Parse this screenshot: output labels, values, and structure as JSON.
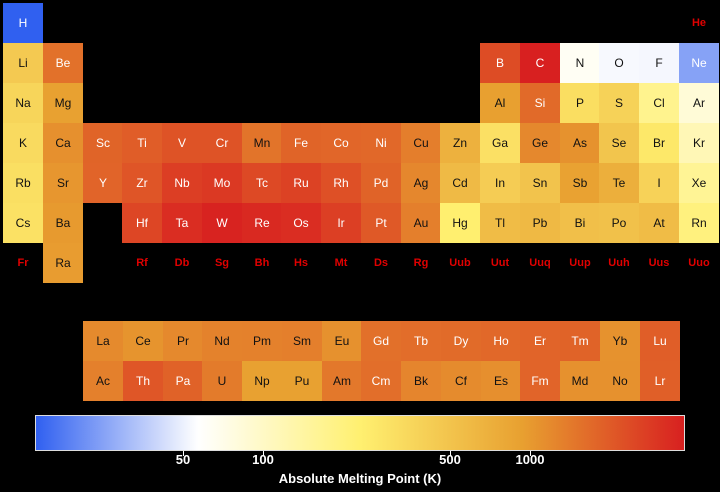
{
  "chart_data": {
    "type": "heatmap",
    "colorbar": {
      "label": "Absolute Melting Point (K)",
      "scale": "log",
      "range": [
        14,
        3800
      ],
      "ticks": [
        50,
        100,
        500,
        1000
      ],
      "colors": [
        "#3060f0",
        "#ffffff",
        "#fff070",
        "#e8a030",
        "#d82020"
      ]
    },
    "main_table": [
      {
        "symbol": "H",
        "row": 1,
        "col": 1,
        "value": 14
      },
      {
        "symbol": "He",
        "row": 1,
        "col": 18,
        "value": null
      },
      {
        "symbol": "Li",
        "row": 2,
        "col": 1,
        "value": 454
      },
      {
        "symbol": "Be",
        "row": 2,
        "col": 2,
        "value": 1560
      },
      {
        "symbol": "B",
        "row": 2,
        "col": 13,
        "value": 2349
      },
      {
        "symbol": "C",
        "row": 2,
        "col": 14,
        "value": 3800
      },
      {
        "symbol": "N",
        "row": 2,
        "col": 15,
        "value": 63
      },
      {
        "symbol": "O",
        "row": 2,
        "col": 16,
        "value": 54
      },
      {
        "symbol": "F",
        "row": 2,
        "col": 17,
        "value": 53
      },
      {
        "symbol": "Ne",
        "row": 2,
        "col": 18,
        "value": 25
      },
      {
        "symbol": "Na",
        "row": 3,
        "col": 1,
        "value": 371
      },
      {
        "symbol": "Mg",
        "row": 3,
        "col": 2,
        "value": 923
      },
      {
        "symbol": "Al",
        "row": 3,
        "col": 13,
        "value": 933
      },
      {
        "symbol": "Si",
        "row": 3,
        "col": 14,
        "value": 1687
      },
      {
        "symbol": "P",
        "row": 3,
        "col": 15,
        "value": 317
      },
      {
        "symbol": "S",
        "row": 3,
        "col": 16,
        "value": 388
      },
      {
        "symbol": "Cl",
        "row": 3,
        "col": 17,
        "value": 172
      },
      {
        "symbol": "Ar",
        "row": 3,
        "col": 18,
        "value": 84
      },
      {
        "symbol": "K",
        "row": 4,
        "col": 1,
        "value": 337
      },
      {
        "symbol": "Ca",
        "row": 4,
        "col": 2,
        "value": 1115
      },
      {
        "symbol": "Sc",
        "row": 4,
        "col": 3,
        "value": 1814
      },
      {
        "symbol": "Ti",
        "row": 4,
        "col": 4,
        "value": 1941
      },
      {
        "symbol": "V",
        "row": 4,
        "col": 5,
        "value": 2183
      },
      {
        "symbol": "Cr",
        "row": 4,
        "col": 6,
        "value": 2180
      },
      {
        "symbol": "Mn",
        "row": 4,
        "col": 7,
        "value": 1519
      },
      {
        "symbol": "Fe",
        "row": 4,
        "col": 8,
        "value": 1811
      },
      {
        "symbol": "Co",
        "row": 4,
        "col": 9,
        "value": 1768
      },
      {
        "symbol": "Ni",
        "row": 4,
        "col": 10,
        "value": 1728
      },
      {
        "symbol": "Cu",
        "row": 4,
        "col": 11,
        "value": 1358
      },
      {
        "symbol": "Zn",
        "row": 4,
        "col": 12,
        "value": 693
      },
      {
        "symbol": "Ga",
        "row": 4,
        "col": 13,
        "value": 303
      },
      {
        "symbol": "Ge",
        "row": 4,
        "col": 14,
        "value": 1211
      },
      {
        "symbol": "As",
        "row": 4,
        "col": 15,
        "value": 1090
      },
      {
        "symbol": "Se",
        "row": 4,
        "col": 16,
        "value": 494
      },
      {
        "symbol": "Br",
        "row": 4,
        "col": 17,
        "value": 266
      },
      {
        "symbol": "Kr",
        "row": 4,
        "col": 18,
        "value": 116
      },
      {
        "symbol": "Rb",
        "row": 5,
        "col": 1,
        "value": 312
      },
      {
        "symbol": "Sr",
        "row": 5,
        "col": 2,
        "value": 1050
      },
      {
        "symbol": "Y",
        "row": 5,
        "col": 3,
        "value": 1799
      },
      {
        "symbol": "Zr",
        "row": 5,
        "col": 4,
        "value": 2128
      },
      {
        "symbol": "Nb",
        "row": 5,
        "col": 5,
        "value": 2750
      },
      {
        "symbol": "Mo",
        "row": 5,
        "col": 6,
        "value": 2896
      },
      {
        "symbol": "Tc",
        "row": 5,
        "col": 7,
        "value": 2430
      },
      {
        "symbol": "Ru",
        "row": 5,
        "col": 8,
        "value": 2607
      },
      {
        "symbol": "Rh",
        "row": 5,
        "col": 9,
        "value": 2237
      },
      {
        "symbol": "Pd",
        "row": 5,
        "col": 10,
        "value": 1828
      },
      {
        "symbol": "Ag",
        "row": 5,
        "col": 11,
        "value": 1235
      },
      {
        "symbol": "Cd",
        "row": 5,
        "col": 12,
        "value": 594
      },
      {
        "symbol": "In",
        "row": 5,
        "col": 13,
        "value": 430
      },
      {
        "symbol": "Sn",
        "row": 5,
        "col": 14,
        "value": 505
      },
      {
        "symbol": "Sb",
        "row": 5,
        "col": 15,
        "value": 904
      },
      {
        "symbol": "Te",
        "row": 5,
        "col": 16,
        "value": 723
      },
      {
        "symbol": "I",
        "row": 5,
        "col": 17,
        "value": 387
      },
      {
        "symbol": "Xe",
        "row": 5,
        "col": 18,
        "value": 161
      },
      {
        "symbol": "Cs",
        "row": 6,
        "col": 1,
        "value": 302
      },
      {
        "symbol": "Ba",
        "row": 6,
        "col": 2,
        "value": 1000
      },
      {
        "symbol": "Hf",
        "row": 6,
        "col": 4,
        "value": 2506
      },
      {
        "symbol": "Ta",
        "row": 6,
        "col": 5,
        "value": 3290
      },
      {
        "symbol": "W",
        "row": 6,
        "col": 6,
        "value": 3695
      },
      {
        "symbol": "Re",
        "row": 6,
        "col": 7,
        "value": 3459
      },
      {
        "symbol": "Os",
        "row": 6,
        "col": 8,
        "value": 3306
      },
      {
        "symbol": "Ir",
        "row": 6,
        "col": 9,
        "value": 2719
      },
      {
        "symbol": "Pt",
        "row": 6,
        "col": 10,
        "value": 2041
      },
      {
        "symbol": "Au",
        "row": 6,
        "col": 11,
        "value": 1337
      },
      {
        "symbol": "Hg",
        "row": 6,
        "col": 12,
        "value": 234
      },
      {
        "symbol": "Tl",
        "row": 6,
        "col": 13,
        "value": 577
      },
      {
        "symbol": "Pb",
        "row": 6,
        "col": 14,
        "value": 601
      },
      {
        "symbol": "Bi",
        "row": 6,
        "col": 15,
        "value": 544
      },
      {
        "symbol": "Po",
        "row": 6,
        "col": 16,
        "value": 527
      },
      {
        "symbol": "At",
        "row": 6,
        "col": 17,
        "value": 575
      },
      {
        "symbol": "Rn",
        "row": 6,
        "col": 18,
        "value": 202
      },
      {
        "symbol": "Fr",
        "row": 7,
        "col": 1,
        "value": null
      },
      {
        "symbol": "Ra",
        "row": 7,
        "col": 2,
        "value": 973
      },
      {
        "symbol": "Rf",
        "row": 7,
        "col": 4,
        "value": null
      },
      {
        "symbol": "Db",
        "row": 7,
        "col": 5,
        "value": null
      },
      {
        "symbol": "Sg",
        "row": 7,
        "col": 6,
        "value": null
      },
      {
        "symbol": "Bh",
        "row": 7,
        "col": 7,
        "value": null
      },
      {
        "symbol": "Hs",
        "row": 7,
        "col": 8,
        "value": null
      },
      {
        "symbol": "Mt",
        "row": 7,
        "col": 9,
        "value": null
      },
      {
        "symbol": "Ds",
        "row": 7,
        "col": 10,
        "value": null
      },
      {
        "symbol": "Rg",
        "row": 7,
        "col": 11,
        "value": null
      },
      {
        "symbol": "Uub",
        "row": 7,
        "col": 12,
        "value": null
      },
      {
        "symbol": "Uut",
        "row": 7,
        "col": 13,
        "value": null
      },
      {
        "symbol": "Uuq",
        "row": 7,
        "col": 14,
        "value": null
      },
      {
        "symbol": "Uup",
        "row": 7,
        "col": 15,
        "value": null
      },
      {
        "symbol": "Uuh",
        "row": 7,
        "col": 16,
        "value": null
      },
      {
        "symbol": "Uus",
        "row": 7,
        "col": 17,
        "value": null
      },
      {
        "symbol": "Uuo",
        "row": 7,
        "col": 18,
        "value": null
      }
    ],
    "lanthanides": [
      {
        "symbol": "La",
        "value": 1193
      },
      {
        "symbol": "Ce",
        "value": 1068
      },
      {
        "symbol": "Pr",
        "value": 1208
      },
      {
        "symbol": "Nd",
        "value": 1297
      },
      {
        "symbol": "Pm",
        "value": 1315
      },
      {
        "symbol": "Sm",
        "value": 1345
      },
      {
        "symbol": "Eu",
        "value": 1099
      },
      {
        "symbol": "Gd",
        "value": 1585
      },
      {
        "symbol": "Tb",
        "value": 1629
      },
      {
        "symbol": "Dy",
        "value": 1680
      },
      {
        "symbol": "Ho",
        "value": 1734
      },
      {
        "symbol": "Er",
        "value": 1802
      },
      {
        "symbol": "Tm",
        "value": 1818
      },
      {
        "symbol": "Yb",
        "value": 1097
      },
      {
        "symbol": "Lu",
        "value": 1925
      }
    ],
    "actinides": [
      {
        "symbol": "Ac",
        "value": 1323
      },
      {
        "symbol": "Th",
        "value": 2115
      },
      {
        "symbol": "Pa",
        "value": 1841
      },
      {
        "symbol": "U",
        "value": 1405
      },
      {
        "symbol": "Np",
        "value": 917
      },
      {
        "symbol": "Pu",
        "value": 913
      },
      {
        "symbol": "Am",
        "value": 1449
      },
      {
        "symbol": "Cm",
        "value": 1613
      },
      {
        "symbol": "Bk",
        "value": 1259
      },
      {
        "symbol": "Cf",
        "value": 1173
      },
      {
        "symbol": "Es",
        "value": 1133
      },
      {
        "symbol": "Fm",
        "value": 1800
      },
      {
        "symbol": "Md",
        "value": 1100
      },
      {
        "symbol": "No",
        "value": 1100
      },
      {
        "symbol": "Lr",
        "value": 1900
      }
    ]
  }
}
